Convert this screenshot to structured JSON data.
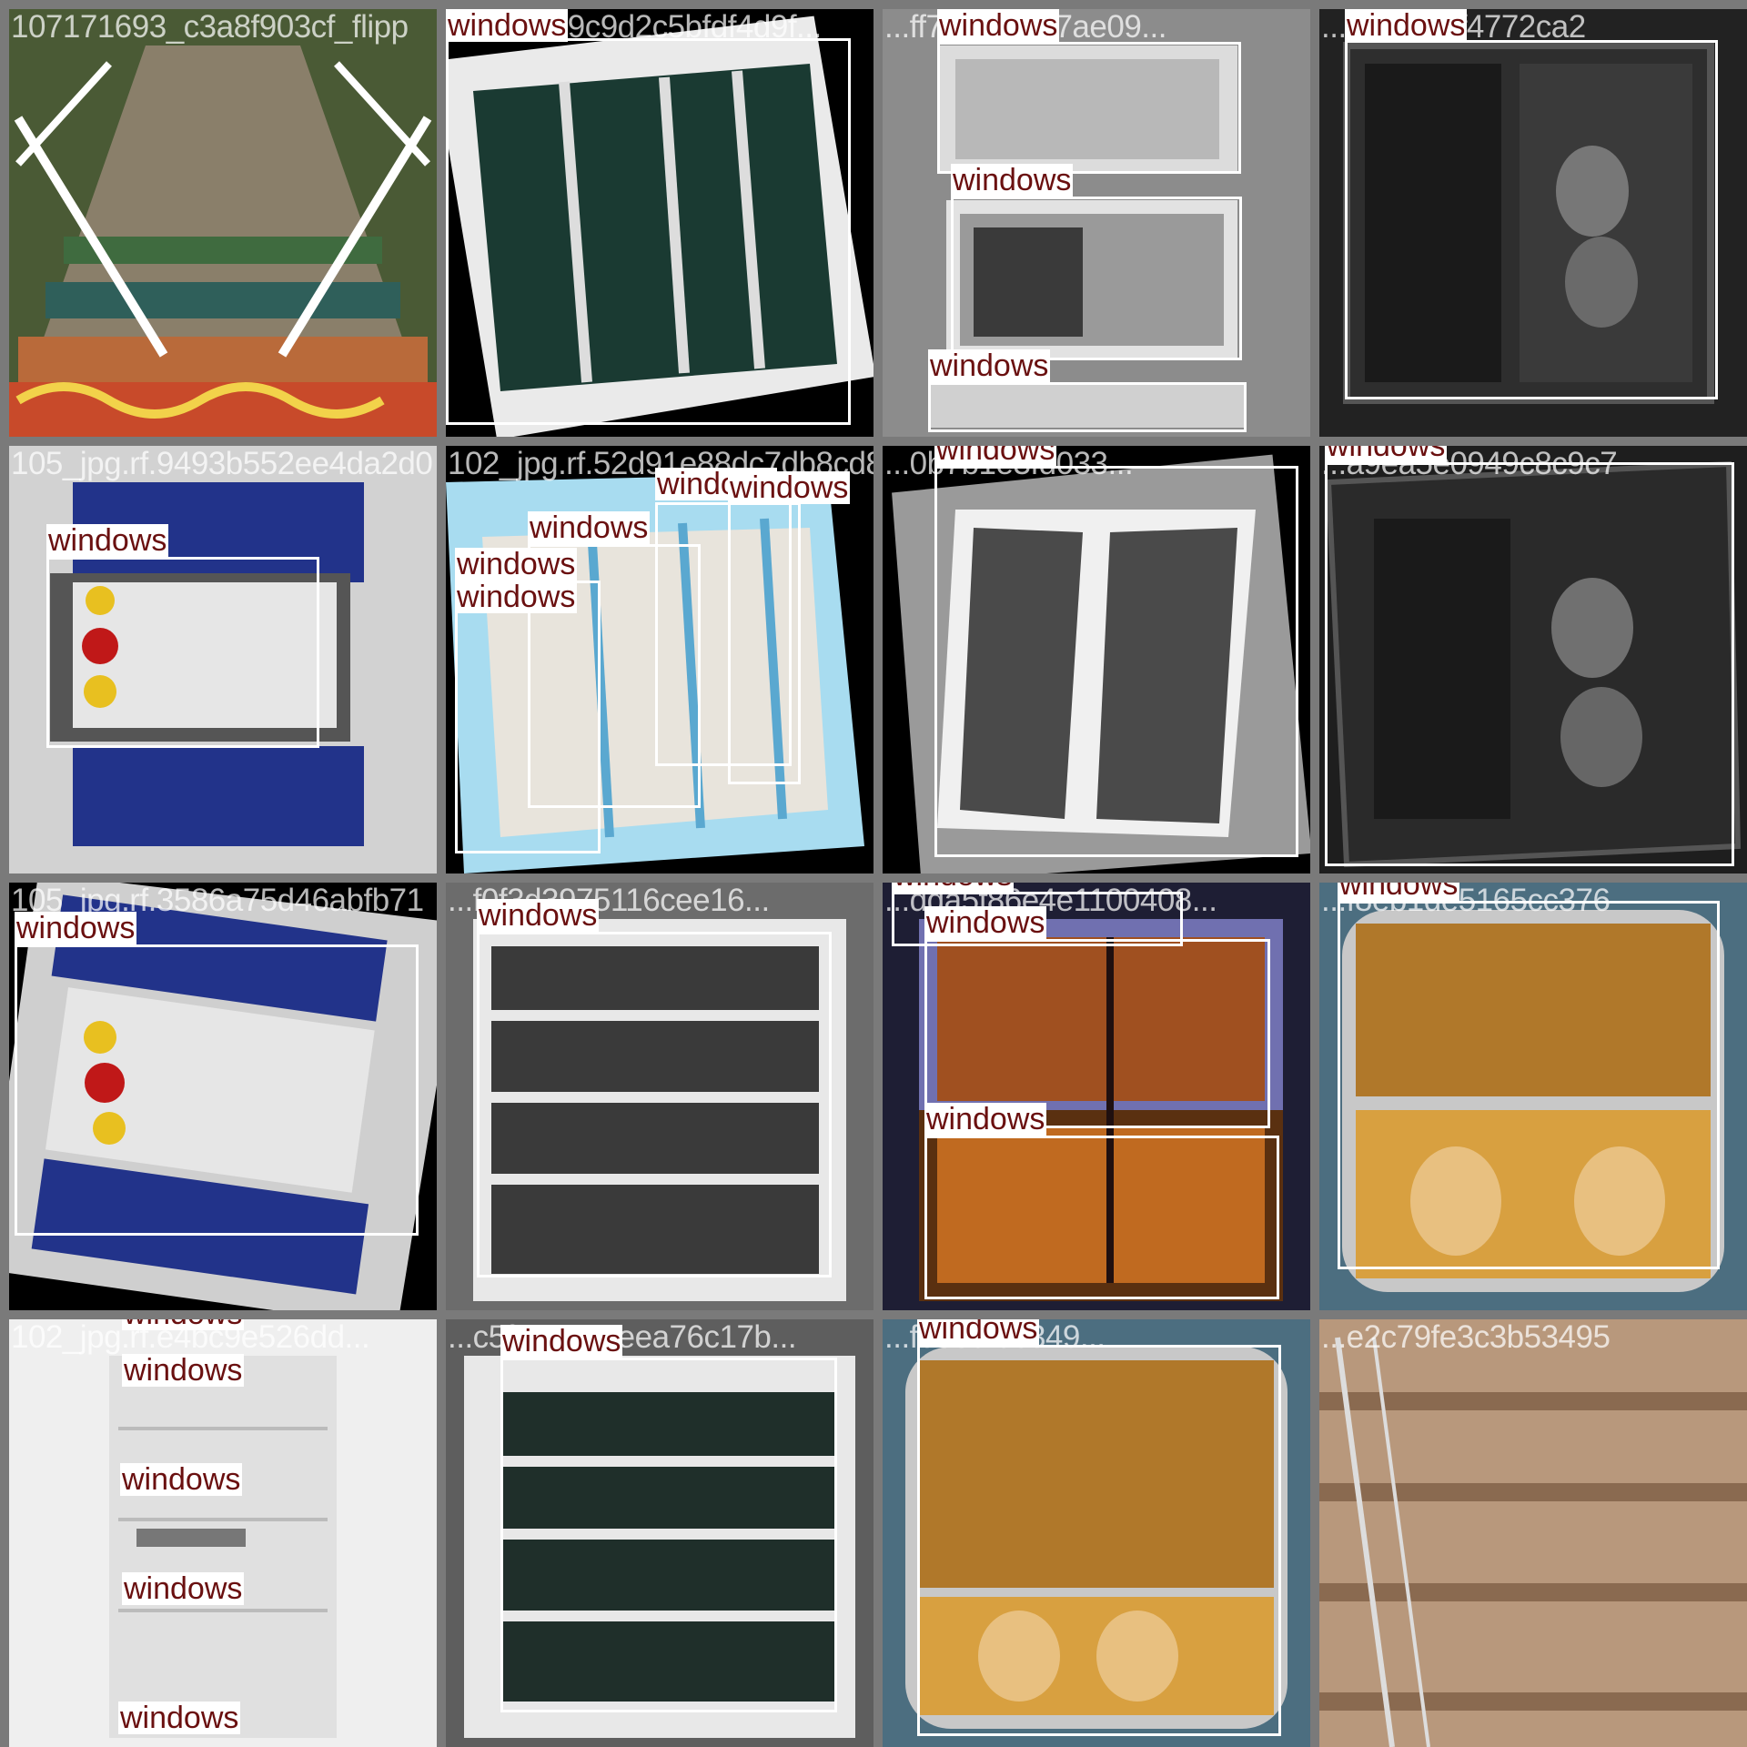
{
  "class_label": "windows",
  "tiles": [
    {
      "filename": "107171693_c3a8f903cf_flipp",
      "labels": []
    },
    {
      "filename": "...f4223b9c9d2c5bfdf4d9f...",
      "labels": [
        "windows"
      ]
    },
    {
      "filename": "...ff7a089fde7ae09...",
      "labels": [
        "windows",
        "windows",
        "windows"
      ]
    },
    {
      "filename": "...e4e6fddf4772ca2",
      "labels": [
        "windows"
      ]
    },
    {
      "filename": "105_jpg.rf.9493b552ee4da2d0",
      "labels": [
        "windows"
      ]
    },
    {
      "filename": "102_jpg.rf.52d91e88dc7db8cd8f...",
      "labels": [
        "windows",
        "windows",
        "windows",
        "windows",
        "windows"
      ]
    },
    {
      "filename": "...0b7b1e3fd033...",
      "labels": [
        "windows"
      ]
    },
    {
      "filename": "...a9ea5e0949c8c9c7",
      "labels": [
        "windows"
      ]
    },
    {
      "filename": "105_jpg.rf.3586a75d46abfb71",
      "labels": [
        "windows"
      ]
    },
    {
      "filename": "...f0f3d3975116cee16...",
      "labels": [
        "windows"
      ]
    },
    {
      "filename": "...dda5f86e4e1100408...",
      "labels": [
        "windows",
        "windows",
        "windows"
      ]
    },
    {
      "filename": "...f8eb1de5165cc376",
      "labels": [
        "windows"
      ]
    },
    {
      "filename": "102_jpg.rf.e4bc9e526dd...",
      "labels": [
        "windows",
        "windows",
        "windows",
        "windows",
        "windows"
      ]
    },
    {
      "filename": "...c5f597060eea76c17b...",
      "labels": [
        "windows"
      ]
    },
    {
      "filename": "...f6635f5c349...",
      "labels": [
        "windows"
      ]
    },
    {
      "filename": "...e2c79fe3c3b53495",
      "labels": []
    }
  ]
}
